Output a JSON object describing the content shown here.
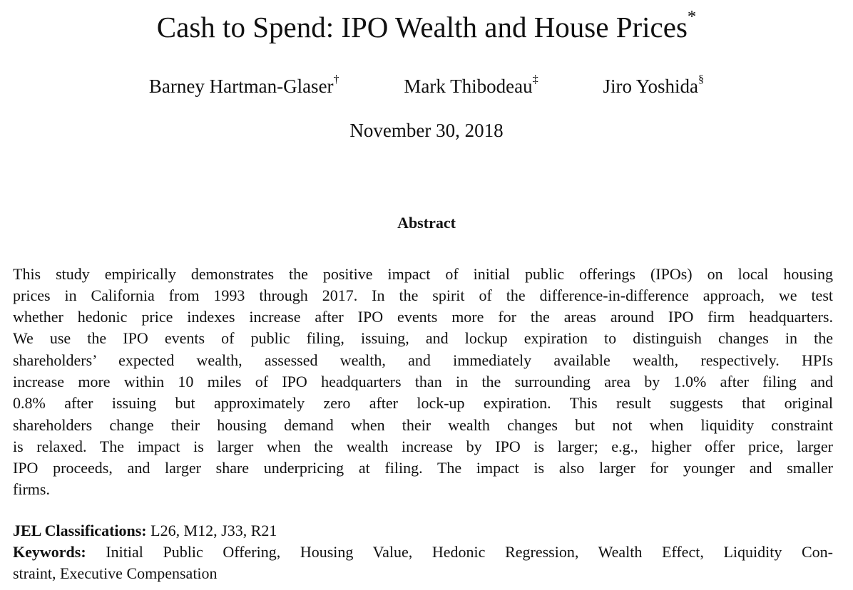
{
  "title": "Cash to Spend: IPO Wealth and House Prices",
  "title_mark": "*",
  "authors": [
    {
      "name": "Barney Hartman-Glaser",
      "mark": "†"
    },
    {
      "name": "Mark Thibodeau",
      "mark": "‡"
    },
    {
      "name": "Jiro Yoshida",
      "mark": "§"
    }
  ],
  "date": "November 30, 2018",
  "abstract": {
    "heading": "Abstract",
    "lines": [
      "This study empirically demonstrates the positive impact of initial public offerings (IPOs) on local housing",
      "prices in California from 1993 through 2017. In the spirit of the difference-in-difference approach, we test",
      "whether hedonic price indexes increase after IPO events more for the areas around IPO firm headquarters.",
      "We use the IPO events of public filing, issuing, and lockup expiration to distinguish changes in the",
      "shareholders’ expected wealth, assessed wealth, and immediately available wealth, respectively. HPIs",
      "increase more within 10 miles of IPO headquarters than in the surrounding area by 1.0% after filing and",
      "0.8% after issuing but approximately zero after lock-up expiration. This result suggests that original",
      "shareholders change their housing demand when their wealth changes but not when liquidity constraint",
      "is relaxed. The impact is larger when the wealth increase by IPO is larger; e.g., higher offer price, larger",
      "IPO proceeds, and larger share underpricing at filing. The impact is also larger for younger and smaller",
      "firms."
    ]
  },
  "jel": {
    "label": "JEL Classifications:",
    "value": "L26, M12, J33, R21"
  },
  "keywords": {
    "label": "Keywords:",
    "line1": "Initial Public Offering, Housing Value, Hedonic Regression, Wealth Effect, Liquidity Con-",
    "line2": "straint, Executive Compensation"
  }
}
